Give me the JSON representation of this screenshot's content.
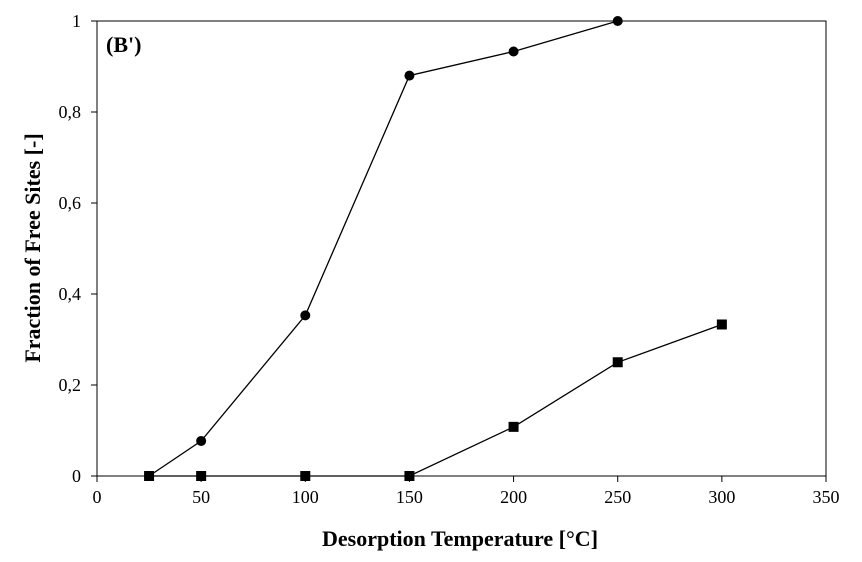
{
  "chart_data": {
    "type": "line",
    "panel_label": "(B')",
    "xlabel": "Desorption Temperature [°C]",
    "ylabel": "Fraction of Free Sites [-]",
    "xlim": [
      0,
      350
    ],
    "ylim": [
      0,
      1
    ],
    "x_ticks": [
      0,
      50,
      100,
      150,
      200,
      250,
      300,
      350
    ],
    "x_tick_labels": [
      "0",
      "50",
      "100",
      "150",
      "200",
      "250",
      "300",
      "350"
    ],
    "y_ticks": [
      0,
      0.2,
      0.4,
      0.6,
      0.8,
      1
    ],
    "y_tick_labels": [
      "0",
      "0,2",
      "0,4",
      "0,6",
      "0,8",
      "1"
    ],
    "grid": false,
    "legend": "none",
    "series": [
      {
        "marker": "circle",
        "color": "#000000",
        "x": [
          25,
          50,
          100,
          150,
          200,
          250
        ],
        "y": [
          0,
          0.077,
          0.353,
          0.88,
          0.933,
          1.0
        ]
      },
      {
        "marker": "square",
        "color": "#000000",
        "x": [
          25,
          50,
          100,
          150,
          200,
          250,
          300
        ],
        "y": [
          0,
          0,
          0,
          0,
          0.108,
          0.25,
          0.333
        ]
      }
    ]
  }
}
